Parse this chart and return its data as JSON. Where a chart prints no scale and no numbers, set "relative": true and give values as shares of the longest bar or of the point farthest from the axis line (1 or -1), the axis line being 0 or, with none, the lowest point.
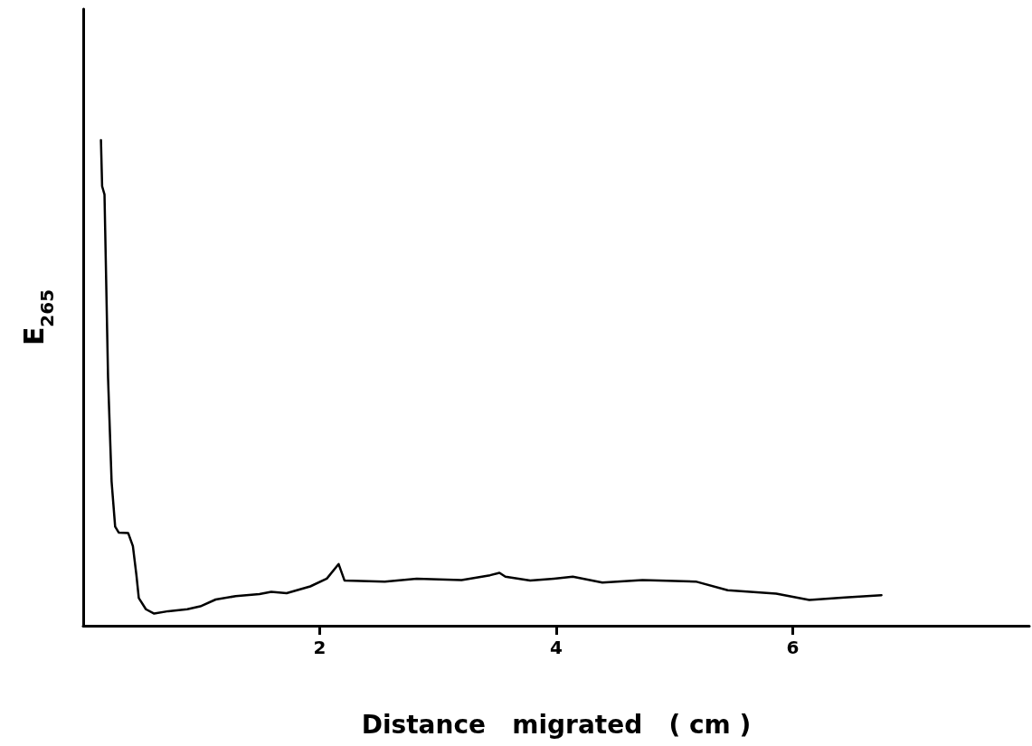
{
  "chart_data": {
    "type": "line",
    "relative": true,
    "xlabel": "Distance   migrated   ( cm )",
    "ylabel": "E$_{265}$",
    "xlim": [
      0,
      8
    ],
    "xticks": [
      2,
      4,
      6
    ],
    "grid": false,
    "marker": "none",
    "line_style": "solid",
    "series": [
      {
        "color": "#000000",
        "x": [
          0.15,
          0.16,
          0.18,
          0.21,
          0.24,
          0.27,
          0.3,
          0.38,
          0.42,
          0.45,
          0.47,
          0.53,
          0.6,
          0.72,
          0.88,
          0.99,
          1.12,
          1.29,
          1.49,
          1.59,
          1.72,
          1.92,
          2.06,
          2.16,
          2.21,
          2.55,
          2.82,
          3.2,
          3.44,
          3.52,
          3.57,
          3.78,
          3.98,
          4.14,
          4.39,
          4.73,
          5.18,
          5.45,
          5.86,
          6.14,
          6.44,
          6.75
        ],
        "values": [
          1.0,
          0.905,
          0.888,
          0.511,
          0.297,
          0.204,
          0.192,
          0.191,
          0.164,
          0.104,
          0.057,
          0.034,
          0.025,
          0.03,
          0.034,
          0.04,
          0.054,
          0.061,
          0.065,
          0.07,
          0.067,
          0.081,
          0.097,
          0.127,
          0.093,
          0.091,
          0.097,
          0.094,
          0.104,
          0.109,
          0.101,
          0.093,
          0.097,
          0.101,
          0.089,
          0.094,
          0.091,
          0.073,
          0.066,
          0.053,
          0.058,
          0.063
        ]
      }
    ]
  }
}
